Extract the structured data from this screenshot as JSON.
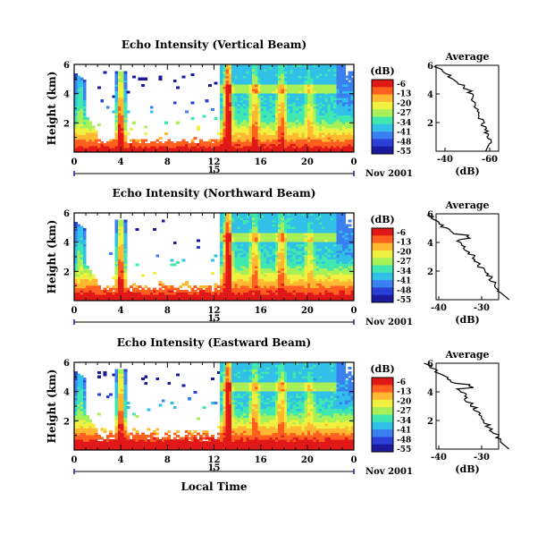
{
  "figure": {
    "date_label": "Nov 2001",
    "x_title": "Local Time",
    "y_label": "Height (km)",
    "cbar_unit": "(dB)",
    "avg_title": "Average",
    "avg_xlabel": "(dB)"
  },
  "chart_data": [
    {
      "type": "heatmap",
      "title": "Echo Intensity (Vertical Beam)",
      "xlabel": "",
      "ylabel": "Height (km)",
      "x_ticks": [
        "0",
        "4",
        "8",
        "12",
        "16",
        "20",
        "0"
      ],
      "x_lim": [
        0,
        24
      ],
      "y_ticks": [
        "2",
        "4",
        "6"
      ],
      "y_lim": [
        0,
        6
      ],
      "day_label": "15",
      "colorbar": {
        "unit": "(dB)",
        "ticks": [
          "-6",
          "-13",
          "-20",
          "-27",
          "-34",
          "-41",
          "-48",
          "-55"
        ]
      },
      "average": {
        "title": "Average",
        "xlabel": "(dB)",
        "x_ticks": [
          "-40",
          "-60"
        ],
        "y_ticks": [
          "2",
          "4",
          "6"
        ]
      },
      "colors": [
        "#1a1a9e",
        "#2a40d8",
        "#3a80f0",
        "#30c0e8",
        "#40e8b0",
        "#a8f058",
        "#f0f040",
        "#ffb830",
        "#ff6020",
        "#e01818"
      ]
    },
    {
      "type": "heatmap",
      "title": "Echo Intensity (Northward Beam)",
      "xlabel": "",
      "ylabel": "Height (km)",
      "x_ticks": [
        "0",
        "4",
        "8",
        "12",
        "16",
        "20",
        "0"
      ],
      "x_lim": [
        0,
        24
      ],
      "y_ticks": [
        "2",
        "4",
        "6"
      ],
      "y_lim": [
        0,
        6
      ],
      "day_label": "15",
      "colorbar": {
        "unit": "(dB)",
        "ticks": [
          "-6",
          "-13",
          "-20",
          "-27",
          "-34",
          "-41",
          "-48",
          "-55"
        ]
      },
      "average": {
        "title": "Average",
        "xlabel": "(dB)",
        "x_ticks": [
          "-40",
          "-30"
        ],
        "y_ticks": [
          "2",
          "4",
          "6"
        ]
      },
      "colors": [
        "#1a1a9e",
        "#2a40d8",
        "#3a80f0",
        "#30c0e8",
        "#40e8b0",
        "#a8f058",
        "#f0f040",
        "#ffb830",
        "#ff6020",
        "#e01818"
      ]
    },
    {
      "type": "heatmap",
      "title": "Echo Intensity (Eastward Beam)",
      "xlabel": "Local Time",
      "ylabel": "Height (km)",
      "x_ticks": [
        "0",
        "4",
        "8",
        "12",
        "16",
        "20",
        "0"
      ],
      "x_lim": [
        0,
        24
      ],
      "y_ticks": [
        "2",
        "4",
        "6"
      ],
      "y_lim": [
        0,
        6
      ],
      "day_label": "15",
      "colorbar": {
        "unit": "(dB)",
        "ticks": [
          "-6",
          "-13",
          "-20",
          "-27",
          "-34",
          "-41",
          "-48",
          "-55"
        ]
      },
      "average": {
        "title": "Average",
        "xlabel": "(dB)",
        "x_ticks": [
          "-40",
          "-30"
        ],
        "y_ticks": [
          "2",
          "4",
          "6"
        ]
      },
      "colors": [
        "#1a1a9e",
        "#2a40d8",
        "#3a80f0",
        "#30c0e8",
        "#40e8b0",
        "#a8f058",
        "#f0f040",
        "#ffb830",
        "#ff6020",
        "#e01818"
      ]
    }
  ]
}
